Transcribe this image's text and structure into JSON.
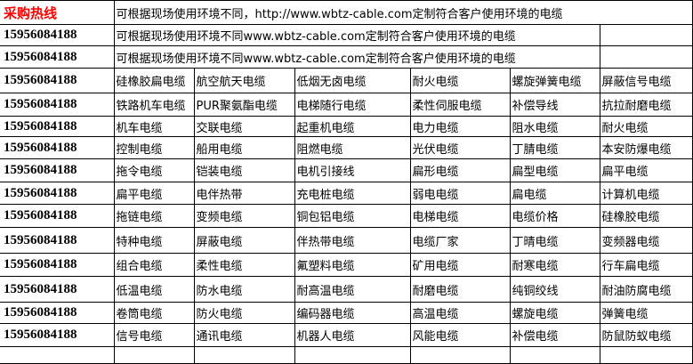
{
  "header": {
    "hotline_label": "采购热线",
    "notice": "可根据现场使用环境不同，http://www.wbtz-cable.com定制符合客户使用环境的电缆",
    "hotline_color": "#ff0000"
  },
  "info_rows": [
    {
      "phone": "15956084188",
      "text": "可根据现场使用环境不同www.wbtz-cable.com定制符合客户使用环境的电缆"
    },
    {
      "phone": "15956084188",
      "text": "可根据现场使用环境不同www.wbtz-cable.com定制符合客户使用环境的电缆"
    }
  ],
  "rows": [
    {
      "phone": "15956084188",
      "items": [
        "硅橡胶扁电缆",
        "航空航天电缆",
        "低烟无卤电缆",
        "耐火电缆",
        "螺旋弹簧电缆",
        "屏蔽信号电缆"
      ]
    },
    {
      "phone": "15956084188",
      "items": [
        "铁路机车电缆",
        "PUR聚氨酯电缆",
        "电梯随行电缆",
        "柔性伺服电缆",
        "补偿导线",
        "抗拉耐磨电缆"
      ]
    },
    {
      "phone": "15956084188",
      "items": [
        "机车电缆",
        "交联电缆",
        "起重机电缆",
        "电力电缆",
        "阻水电缆",
        "耐火电缆"
      ]
    },
    {
      "phone": "15956084188",
      "items": [
        "控制电缆",
        "船用电缆",
        "阻燃电缆",
        "光伏电缆",
        "丁腈电缆",
        "本安防爆电缆"
      ]
    },
    {
      "phone": "15956084188",
      "items": [
        "拖令电缆",
        "铠装电缆",
        "电机引接线",
        "扁形电缆",
        "扁型电缆",
        "扁平电缆"
      ]
    },
    {
      "phone": "15956084188",
      "items": [
        "扁平电缆",
        "电伴热带",
        "充电桩电缆",
        "弱电电缆",
        "扁电缆",
        "计算机电缆"
      ]
    },
    {
      "phone": "15956084188",
      "items": [
        "拖链电缆",
        "变频电缆",
        "铜包铝电缆",
        "电梯电缆",
        "电缆价格",
        "硅橡胶电缆"
      ]
    },
    {
      "phone": "15956084188",
      "items": [
        "特种电缆",
        "屏蔽电缆",
        "伴热带电缆",
        "电缆厂家",
        "丁晴电缆",
        "变频器电缆"
      ]
    },
    {
      "phone": "15956084188",
      "items": [
        "组合电缆",
        "柔性电缆",
        "氟塑料电缆",
        "矿用电缆",
        "耐寒电缆",
        "行车扁电缆"
      ]
    },
    {
      "phone": "15956084188",
      "items": [
        "低温电缆",
        "防水电缆",
        "耐高温电缆",
        "耐磨电缆",
        "纯铜绞线",
        "耐油防腐电缆"
      ]
    },
    {
      "phone": "15956084188",
      "items": [
        "卷筒电缆",
        "防火电缆",
        "编码器电缆",
        "高温电缆",
        "螺旋电缆",
        "弹簧电缆"
      ]
    },
    {
      "phone": "15956084188",
      "items": [
        "信号电缆",
        "通讯电缆",
        "机器人电缆",
        "风能电缆",
        "补偿电缆",
        "防鼠防蚁电缆"
      ]
    }
  ]
}
